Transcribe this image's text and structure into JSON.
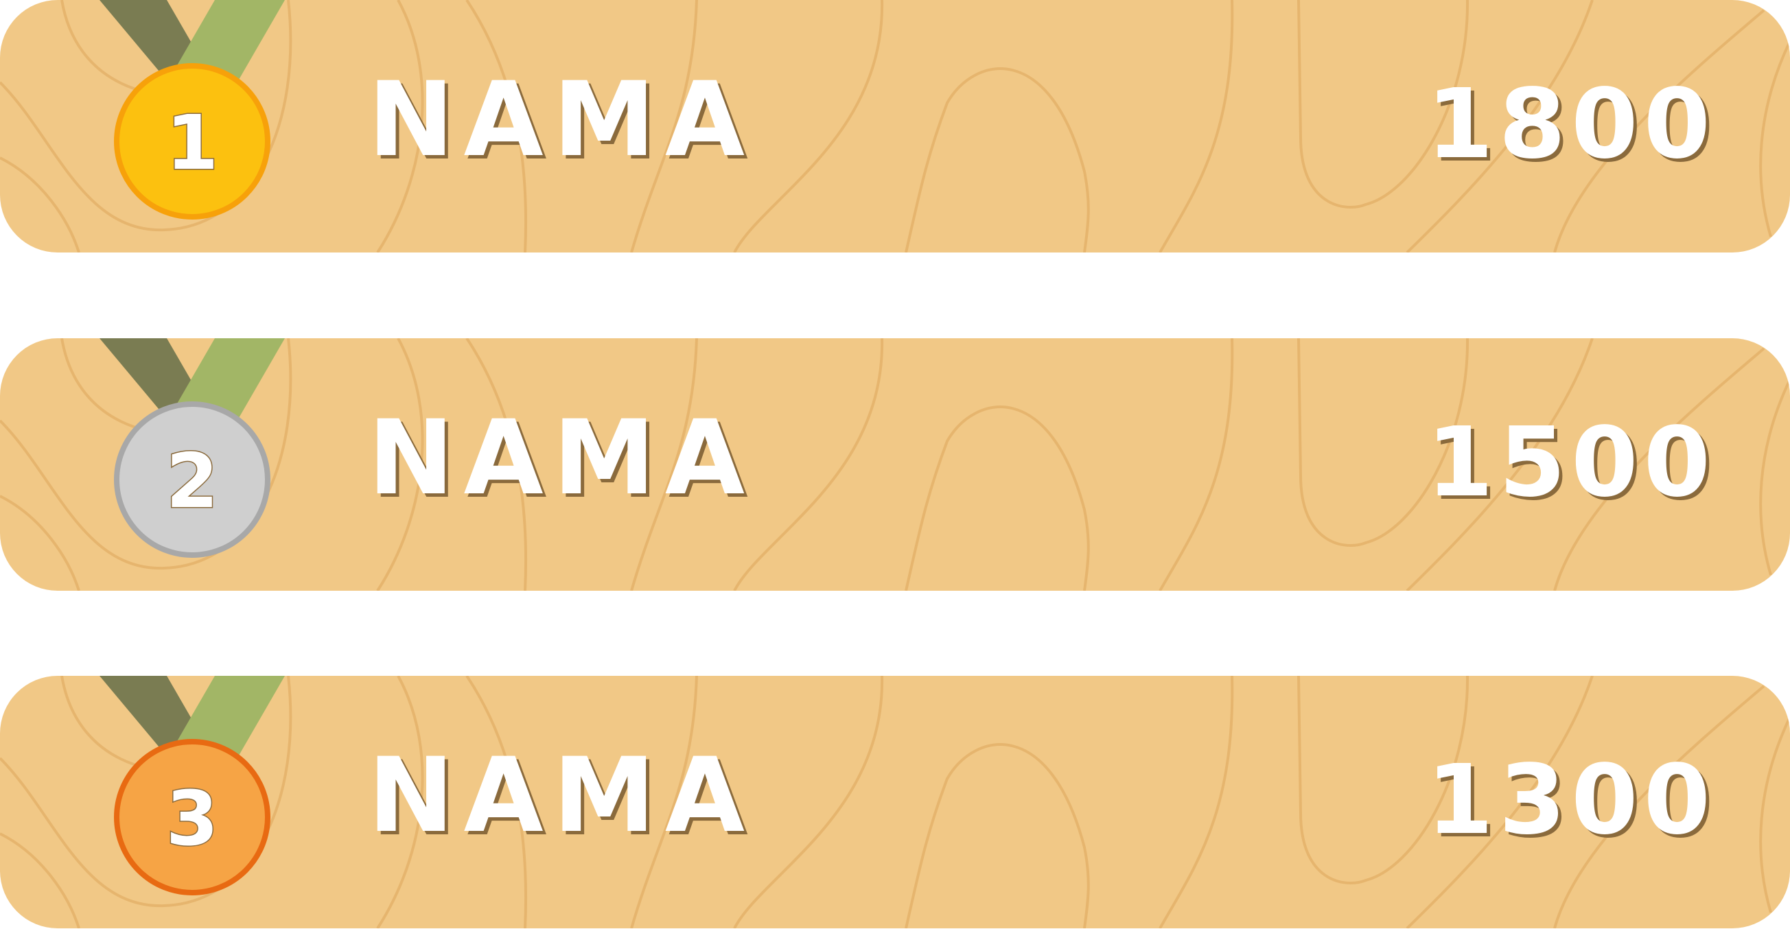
{
  "leaderboard": {
    "entries": [
      {
        "rank": "1",
        "name": "NAMA",
        "score": "1800",
        "medal": "gold-medal-icon"
      },
      {
        "rank": "2",
        "name": "NAMA",
        "score": "1500",
        "medal": "silver-medal-icon"
      },
      {
        "rank": "3",
        "name": "NAMA",
        "score": "1300",
        "medal": "bronze-medal-icon"
      }
    ]
  },
  "colors": {
    "row_background": "#f1c886",
    "row_pattern": "#e6b56e",
    "ribbon_dark": "#7a7c52",
    "ribbon_light": "#a2b666",
    "gold_fill": "#fcc10f",
    "gold_border": "#f7a10a",
    "silver_fill": "#cfcfcf",
    "silver_border": "#a8a8a8",
    "bronze_fill": "#f6a445",
    "bronze_border": "#e86a12",
    "text": "#ffffff",
    "text_shadow": "#8a6a3c"
  }
}
